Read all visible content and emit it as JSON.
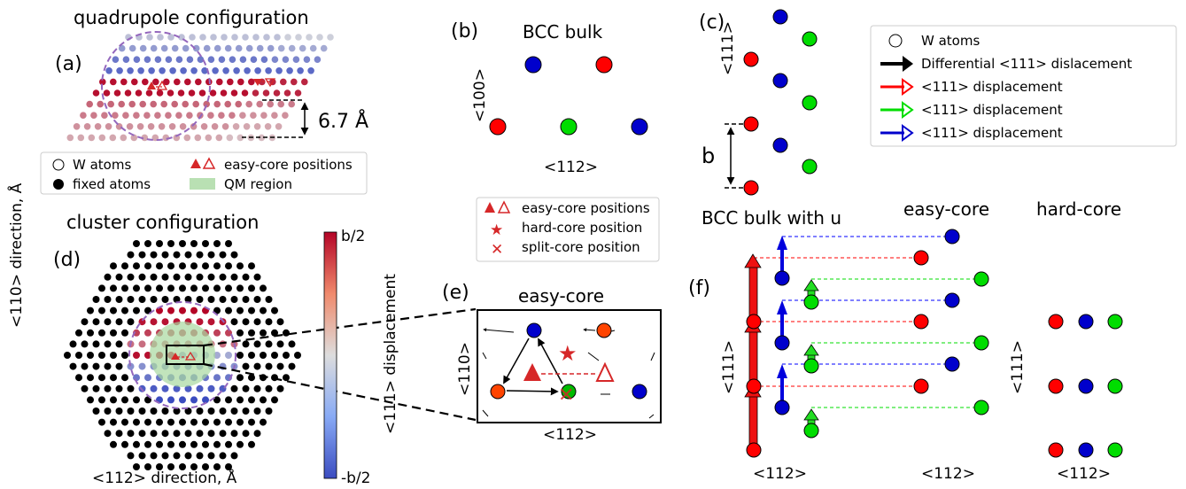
{
  "panel_a": {
    "title": "quadrupole configuration",
    "label": "(a)",
    "distance": "6.7 Å"
  },
  "legend_left": {
    "w_atoms": "W atoms",
    "fixed_atoms": "fixed atoms",
    "easy_core": "easy-core positions",
    "qm_region": "QM region"
  },
  "axis_left": {
    "ylabel": "<110> direction, Å"
  },
  "panel_d": {
    "title": "cluster configuration",
    "label": "(d)",
    "xlabel": "<112> direction, Å"
  },
  "colorbar": {
    "top": "b/2",
    "bottom": "-b/2",
    "label": "<111> displacement",
    "colors": {
      "top": "#b2182b",
      "mid": "#dddddd",
      "bottom": "#3b4cc0"
    }
  },
  "panel_b": {
    "label": "(b)",
    "title": "BCC bulk",
    "ylabel": "<100>",
    "xlabel": "<112>"
  },
  "legend_middle": {
    "easy_core": "easy-core positions",
    "hard_core": "hard-core position",
    "split_core": "split-core position"
  },
  "panel_e": {
    "label": "(e)",
    "title": "easy-core",
    "ylabel": "<110>",
    "xlabel": "<112>"
  },
  "panel_c": {
    "label": "(c)",
    "ylabel": "<111>",
    "b_label": "b"
  },
  "legend_right": {
    "w_atoms": "W atoms",
    "differential": "Differential <111> dislacement",
    "red_disp": "<111> displacement",
    "green_disp": "<111> displacement",
    "blue_disp": "<111> displacement"
  },
  "panel_f": {
    "label": "(f)",
    "title_bulk": "BCC bulk with u",
    "title_easy": "easy-core",
    "title_hard": "hard-core",
    "ylabel_left": "<111>",
    "ylabel_right": "<111>",
    "xlabel_1": "<112>",
    "xlabel_2": "<112>",
    "xlabel_3": "<112>"
  },
  "colors": {
    "red": "#ff0000",
    "green": "#00dd00",
    "blue": "#0000cc",
    "triangle": "#d62728",
    "circle_dash": "#9467bd",
    "qm": "#a8d8a0"
  }
}
